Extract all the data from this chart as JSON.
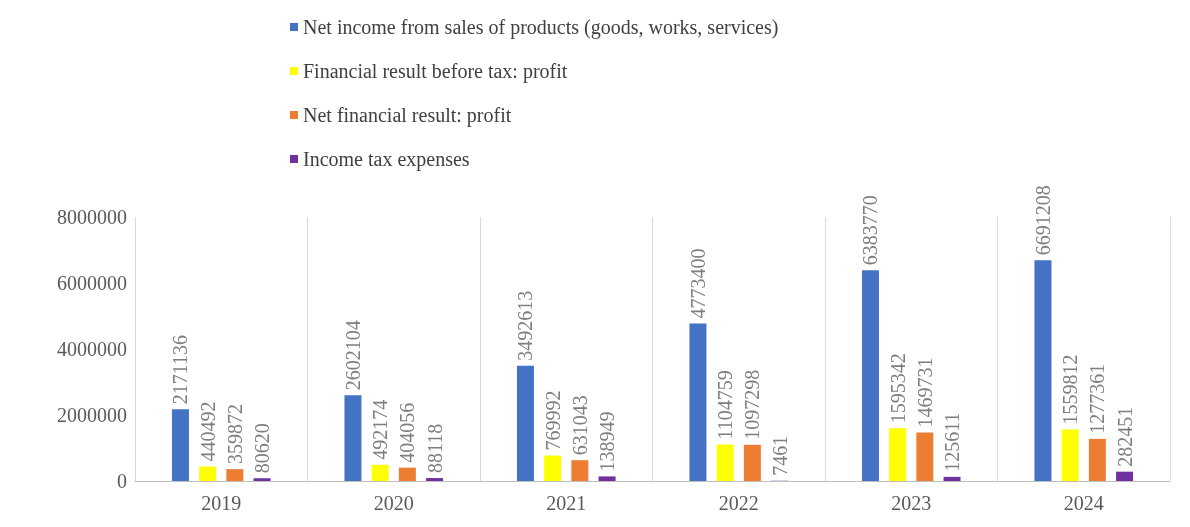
{
  "chart_data": {
    "type": "bar",
    "categories": [
      "2019",
      "2020",
      "2021",
      "2022",
      "2023",
      "2024"
    ],
    "series": [
      {
        "name": "Net income from sales of products (goods, works, services)",
        "color": "#4472c4",
        "values": [
          2171136,
          2602104,
          3492613,
          4773400,
          6383770,
          6691208
        ]
      },
      {
        "name": "Financial result before tax: profit",
        "color": "#ffff00",
        "values": [
          440492,
          492174,
          769992,
          1104759,
          1595342,
          1559812
        ]
      },
      {
        "name": "Net financial result: profit",
        "color": "#ed7d31",
        "values": [
          359872,
          404056,
          631043,
          1097298,
          1469731,
          1277361
        ]
      },
      {
        "name": "Income tax expenses",
        "color": "#7030a0",
        "values": [
          80620,
          88118,
          138949,
          7461,
          125611,
          282451
        ]
      }
    ],
    "ylim": [
      0,
      8000000
    ],
    "yticks": [
      0,
      2000000,
      4000000,
      6000000,
      8000000
    ],
    "grid": "x",
    "legend": "top",
    "data_labels": true
  }
}
